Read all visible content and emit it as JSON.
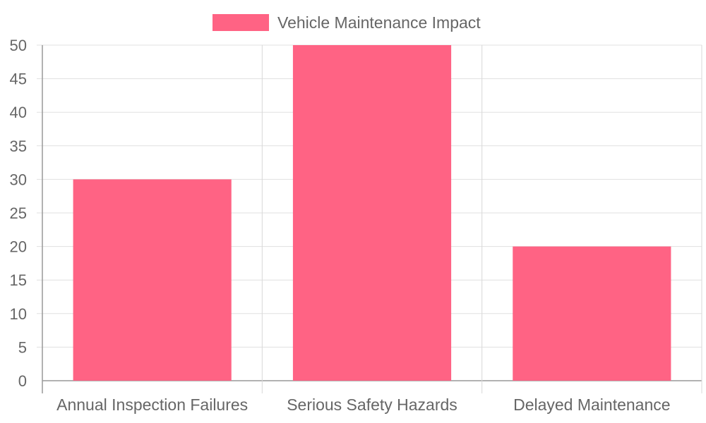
{
  "chart_data": {
    "type": "bar",
    "categories": [
      "Annual Inspection Failures",
      "Serious Safety Hazards",
      "Delayed Maintenance"
    ],
    "series": [
      {
        "name": "Vehicle Maintenance Impact",
        "values": [
          30,
          50,
          20
        ],
        "color": "#ff6384"
      }
    ],
    "y_ticks": [
      "0",
      "5",
      "10",
      "15",
      "20",
      "25",
      "30",
      "35",
      "40",
      "45",
      "50"
    ],
    "ylim": [
      0,
      50
    ],
    "grid": true,
    "legend_position": "top-center"
  }
}
